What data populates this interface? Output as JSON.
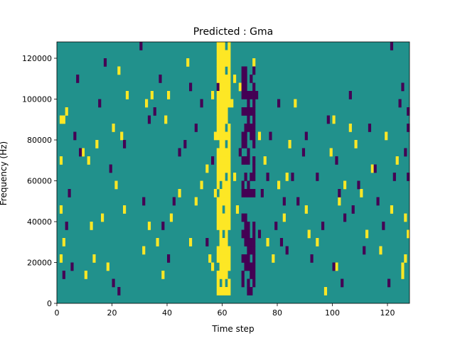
{
  "chart_data": {
    "type": "heatmap",
    "title": "Predicted : Gma",
    "xlabel": "Time step",
    "ylabel": "Frequency (Hz)",
    "xlim": [
      0,
      128
    ],
    "ylim": [
      0,
      128000
    ],
    "x_ticks": [
      0,
      20,
      40,
      60,
      80,
      100,
      120
    ],
    "y_ticks": [
      0,
      20000,
      40000,
      60000,
      80000,
      100000,
      120000
    ],
    "x_tick_labels": [
      "0",
      "20",
      "40",
      "60",
      "80",
      "100",
      "120"
    ],
    "y_tick_labels": [
      "0",
      "20000",
      "40000",
      "60000",
      "80000",
      "100000",
      "120000"
    ],
    "n_time_steps": 128,
    "n_frequency_bins": 32,
    "colormap": "viridis",
    "levels": {
      "low": "#440154",
      "mid": "#21918c",
      "high": "#fde725"
    },
    "grid": false,
    "notes": "Three-level prediction map; background is mid level with scattered high (yellow) and low (purple) cells. Dense high-value band at time steps 58-62 and dense low-value band at time steps 67-71.",
    "high_cells": [
      [
        1,
        22
      ],
      [
        2,
        22
      ],
      [
        3,
        23
      ],
      [
        1,
        17
      ],
      [
        1,
        11
      ],
      [
        2,
        7
      ],
      [
        1,
        5
      ],
      [
        9,
        18
      ],
      [
        14,
        19
      ],
      [
        16,
        10
      ],
      [
        12,
        9
      ],
      [
        10,
        3
      ],
      [
        13,
        5
      ],
      [
        11,
        17
      ],
      [
        22,
        28
      ],
      [
        25,
        25
      ],
      [
        20,
        21
      ],
      [
        21,
        14
      ],
      [
        18,
        4
      ],
      [
        24,
        11
      ],
      [
        23,
        20
      ],
      [
        30,
        31
      ],
      [
        32,
        24
      ],
      [
        34,
        25
      ],
      [
        35,
        23
      ],
      [
        33,
        9
      ],
      [
        31,
        6
      ],
      [
        36,
        7
      ],
      [
        38,
        3
      ],
      [
        39,
        22
      ],
      [
        40,
        25
      ],
      [
        41,
        10
      ],
      [
        44,
        13
      ],
      [
        47,
        29
      ],
      [
        48,
        7
      ],
      [
        50,
        12
      ],
      [
        52,
        14
      ],
      [
        54,
        16
      ],
      [
        55,
        5
      ],
      [
        56,
        25
      ],
      [
        57,
        20
      ],
      [
        58,
        18
      ],
      [
        57,
        13
      ],
      [
        56,
        4
      ],
      [
        58,
        10
      ],
      [
        62,
        20
      ],
      [
        64,
        15
      ],
      [
        65,
        11
      ],
      [
        63,
        24
      ],
      [
        64,
        27
      ],
      [
        66,
        26
      ],
      [
        67,
        8
      ],
      [
        71,
        29
      ],
      [
        73,
        20
      ],
      [
        75,
        17
      ],
      [
        76,
        7
      ],
      [
        78,
        5
      ],
      [
        80,
        14
      ],
      [
        82,
        10
      ],
      [
        83,
        15
      ],
      [
        84,
        19
      ],
      [
        86,
        24
      ],
      [
        90,
        11
      ],
      [
        91,
        8
      ],
      [
        94,
        7
      ],
      [
        97,
        1
      ],
      [
        99,
        18
      ],
      [
        100,
        22
      ],
      [
        101,
        4
      ],
      [
        102,
        12
      ],
      [
        104,
        14
      ],
      [
        106,
        21
      ],
      [
        108,
        19
      ],
      [
        110,
        13
      ],
      [
        112,
        8
      ],
      [
        114,
        16
      ],
      [
        117,
        6
      ],
      [
        119,
        20
      ],
      [
        121,
        11
      ],
      [
        123,
        17
      ],
      [
        125,
        3
      ],
      [
        126,
        10
      ],
      [
        127,
        8
      ],
      [
        126,
        5
      ],
      [
        125,
        4
      ]
    ],
    "low_cells": [
      [
        2,
        3
      ],
      [
        3,
        9
      ],
      [
        4,
        13
      ],
      [
        5,
        4
      ],
      [
        6,
        20
      ],
      [
        7,
        27
      ],
      [
        8,
        18
      ],
      [
        15,
        24
      ],
      [
        17,
        29
      ],
      [
        19,
        16
      ],
      [
        20,
        2
      ],
      [
        22,
        1
      ],
      [
        24,
        19
      ],
      [
        30,
        31
      ],
      [
        31,
        12
      ],
      [
        33,
        22
      ],
      [
        35,
        23
      ],
      [
        37,
        27
      ],
      [
        38,
        9
      ],
      [
        40,
        5
      ],
      [
        42,
        12
      ],
      [
        44,
        18
      ],
      [
        46,
        19
      ],
      [
        48,
        26
      ],
      [
        50,
        21
      ],
      [
        52,
        24
      ],
      [
        54,
        7
      ],
      [
        56,
        17
      ],
      [
        58,
        26
      ],
      [
        59,
        30
      ],
      [
        60,
        4
      ],
      [
        66,
        18
      ],
      [
        67,
        14
      ],
      [
        68,
        10
      ],
      [
        69,
        22
      ],
      [
        70,
        6
      ],
      [
        71,
        2
      ],
      [
        72,
        25
      ],
      [
        73,
        8
      ],
      [
        74,
        13
      ],
      [
        76,
        15
      ],
      [
        77,
        20
      ],
      [
        79,
        9
      ],
      [
        80,
        24
      ],
      [
        81,
        7
      ],
      [
        82,
        12
      ],
      [
        83,
        6
      ],
      [
        85,
        15
      ],
      [
        87,
        12
      ],
      [
        89,
        18
      ],
      [
        90,
        20
      ],
      [
        92,
        5
      ],
      [
        94,
        15
      ],
      [
        96,
        9
      ],
      [
        98,
        22
      ],
      [
        100,
        4
      ],
      [
        101,
        17
      ],
      [
        102,
        13
      ],
      [
        103,
        2
      ],
      [
        104,
        10
      ],
      [
        106,
        25
      ],
      [
        107,
        11
      ],
      [
        109,
        14
      ],
      [
        111,
        6
      ],
      [
        113,
        21
      ],
      [
        115,
        16
      ],
      [
        116,
        12
      ],
      [
        118,
        9
      ],
      [
        120,
        2
      ],
      [
        121,
        31
      ],
      [
        122,
        15
      ],
      [
        124,
        24
      ],
      [
        126,
        18
      ],
      [
        127,
        23
      ],
      [
        127,
        15
      ],
      [
        127,
        21
      ],
      [
        125,
        26
      ]
    ],
    "high_column_band": {
      "x_range": [
        58,
        62
      ],
      "bin_range": [
        1,
        31
      ],
      "density": 0.85
    },
    "low_column_band": {
      "x_range": [
        67,
        71
      ],
      "bin_range": [
        1,
        28
      ],
      "density": 0.55
    }
  }
}
